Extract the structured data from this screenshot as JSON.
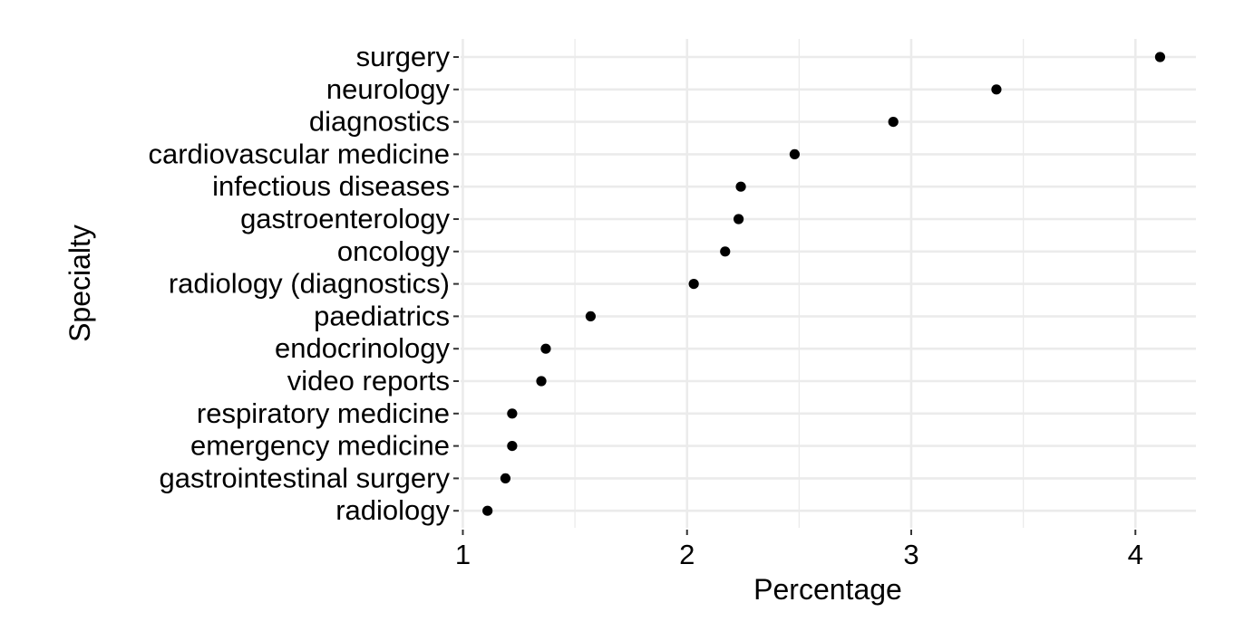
{
  "chart_data": {
    "type": "scatter",
    "title": "",
    "xlabel": "Percentage",
    "ylabel": "Specialty",
    "xlim": [
      0.99,
      4.27
    ],
    "xticks": [
      1,
      2,
      3,
      4
    ],
    "x_tick_labels": [
      "1",
      "2",
      "3",
      "4"
    ],
    "grid": true,
    "legend": "none",
    "point_color": "#000000",
    "grid_color": "#ebebeb",
    "categories": [
      "surgery",
      "neurology",
      "diagnostics",
      "cardiovascular medicine",
      "infectious diseases",
      "gastroenterology",
      "oncology",
      "radiology (diagnostics)",
      "paediatrics",
      "endocrinology",
      "video reports",
      "respiratory medicine",
      "emergency medicine",
      "gastrointestinal surgery",
      "radiology"
    ],
    "values": [
      4.11,
      3.38,
      2.92,
      2.48,
      2.24,
      2.23,
      2.17,
      2.03,
      1.57,
      1.37,
      1.35,
      1.22,
      1.22,
      1.19,
      1.11
    ]
  }
}
